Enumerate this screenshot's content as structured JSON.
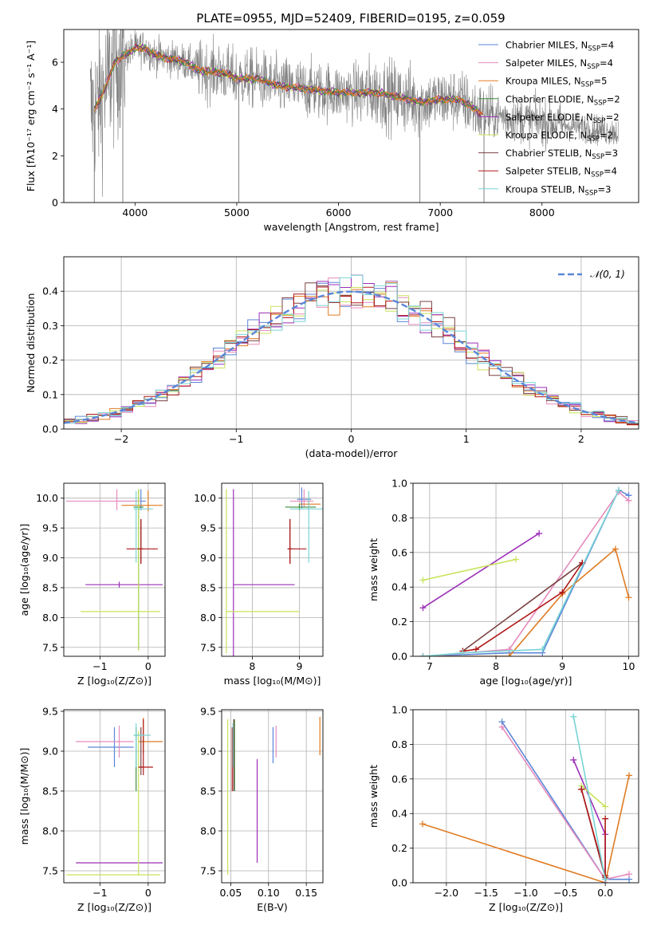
{
  "title": "PLATE=0955, MJD=52409, FIBERID=0195, z=0.059",
  "models": [
    {
      "name": "Chabrier MILES",
      "n": "4",
      "color": "#5b86d8"
    },
    {
      "name": "Salpeter MILES",
      "n": "4",
      "color": "#e58bbd"
    },
    {
      "name": "Kroupa MILES",
      "n": "5",
      "color": "#e07b22"
    },
    {
      "name": "Chabrier ELODIE",
      "n": "2",
      "color": "#3b8f3b"
    },
    {
      "name": "Salpeter ELODIE",
      "n": "2",
      "color": "#9c2fb8"
    },
    {
      "name": "Kroupa ELODIE",
      "n": "2",
      "color": "#c7e35a"
    },
    {
      "name": "Chabrier STELIB",
      "n": "3",
      "color": "#7a4040"
    },
    {
      "name": "Salpeter STELIB",
      "n": "4",
      "color": "#b01818"
    },
    {
      "name": "Kroupa STELIB",
      "n": "3",
      "color": "#7ad4d4"
    }
  ],
  "nssp_prefix": "N",
  "nssp_sub": "SSP",
  "chart_data": [
    {
      "id": "spectrum",
      "type": "line",
      "xlabel": "wavelength [Angstrom, rest frame]",
      "ylabel": "Flux [fλ10⁻¹⁷ erg cm⁻² s⁻¹ A⁻¹]",
      "xlim": [
        3300,
        8950
      ],
      "ylim": [
        0,
        7.4
      ],
      "xticks": [
        4000,
        5000,
        6000,
        7000,
        8000
      ],
      "yticks": [
        0,
        2,
        4,
        6
      ],
      "data_color": "#808080",
      "spikes_down": [
        3600,
        3880,
        5020,
        6800,
        7430
      ],
      "anchor_x": [
        3600,
        3700,
        3800,
        3900,
        4000,
        4100,
        4200,
        4300,
        4400,
        4500,
        4600,
        4700,
        4800,
        4900,
        5000,
        5200,
        5400,
        5600,
        5800,
        6000,
        6200,
        6400,
        6600,
        6800,
        7000,
        7200,
        7400
      ],
      "anchor_y": [
        4.0,
        4.8,
        6.0,
        6.3,
        6.6,
        6.6,
        6.3,
        6.2,
        6.1,
        6.0,
        5.7,
        5.6,
        5.6,
        5.5,
        5.3,
        5.3,
        5.0,
        4.9,
        4.8,
        4.7,
        4.7,
        4.7,
        4.5,
        4.3,
        4.4,
        4.4,
        3.8
      ]
    },
    {
      "id": "residual-hist",
      "type": "line",
      "xlabel": "(data-model)/error",
      "ylabel": "Normed distribution",
      "xlim": [
        -2.5,
        2.5
      ],
      "ylim": [
        0,
        0.5
      ],
      "xticks": [
        -2,
        -1,
        0,
        1,
        2
      ],
      "yticks": [
        0.0,
        0.1,
        0.2,
        0.3,
        0.4
      ],
      "legend": "𝒩(0, 1)",
      "gaussian_color": "#5b86d8"
    },
    {
      "id": "age-vs-Z",
      "type": "scatter",
      "xlabel": "Z [log₁₀(Z/Z⊙)]",
      "ylabel": "age  [log₁₀(age/yr)]",
      "xlim": [
        -1.75,
        0.35
      ],
      "ylim": [
        7.35,
        10.25
      ],
      "xticks": [
        -1,
        0
      ],
      "yticks": [
        7.5,
        8.0,
        8.5,
        9.0,
        9.5,
        10.0
      ],
      "points": [
        {
          "m": 0,
          "x": -0.15,
          "y": 9.95,
          "xerr": [
            0.45,
            0.1
          ],
          "yerr": [
            0.15,
            0.2
          ]
        },
        {
          "m": 1,
          "x": -0.65,
          "y": 9.95,
          "xerr": [
            1.05,
            0.5
          ],
          "yerr": [
            0.15,
            0.2
          ]
        },
        {
          "m": 2,
          "x": 0.0,
          "y": 9.88,
          "xerr": [
            0.55,
            0.3
          ],
          "yerr": [
            0.1,
            0.25
          ]
        },
        {
          "m": 3,
          "x": -0.2,
          "y": 9.85,
          "xerr": [
            0.1,
            0.1
          ],
          "yerr": [
            2.4,
            0.3
          ]
        },
        {
          "m": 4,
          "x": -0.6,
          "y": 8.55,
          "xerr": [
            0.7,
            0.9
          ],
          "yerr": [
            0.05,
            0.05
          ]
        },
        {
          "m": 5,
          "x": -0.2,
          "y": 8.1,
          "xerr": [
            1.2,
            0.45
          ],
          "yerr": [
            0.65,
            2.05
          ]
        },
        {
          "m": 6,
          "x": -0.15,
          "y": 9.15,
          "xerr": [
            0.05,
            0.05
          ],
          "yerr": [
            0.25,
            0.5
          ]
        },
        {
          "m": 7,
          "x": -0.15,
          "y": 9.15,
          "xerr": [
            0.3,
            0.35
          ],
          "yerr": [
            0.25,
            0.5
          ]
        },
        {
          "m": 8,
          "x": -0.25,
          "y": 9.82,
          "xerr": [
            0.05,
            0.35
          ],
          "yerr": [
            0.9,
            0.3
          ]
        }
      ]
    },
    {
      "id": "age-vs-mass",
      "type": "scatter",
      "xlabel": "mass [log₁₀(M/M⊙)]",
      "ylabel": "",
      "xlim": [
        7.35,
        9.5
      ],
      "ylim": [
        7.35,
        10.25
      ],
      "xticks": [
        8,
        9
      ],
      "yticks": [
        7.5,
        8.0,
        8.5,
        9.0,
        9.5,
        10.0
      ],
      "points": [
        {
          "m": 0,
          "x": 9.05,
          "y": 9.98,
          "xerr": [
            0.1,
            0.2
          ],
          "yerr": [
            0.15,
            0.2
          ]
        },
        {
          "m": 1,
          "x": 9.1,
          "y": 9.95,
          "xerr": [
            0.3,
            0.2
          ],
          "yerr": [
            0.1,
            0.2
          ]
        },
        {
          "m": 2,
          "x": 9.2,
          "y": 9.9,
          "xerr": [
            0.2,
            0.25
          ],
          "yerr": [
            0.1,
            0.1
          ]
        },
        {
          "m": 3,
          "x": 9.0,
          "y": 9.85,
          "xerr": [
            0.3,
            0.35
          ],
          "yerr": [
            0.05,
            0.05
          ]
        },
        {
          "m": 4,
          "x": 7.6,
          "y": 8.55,
          "xerr": [
            0.0,
            1.3
          ],
          "yerr": [
            1.2,
            1.6
          ]
        },
        {
          "m": 5,
          "x": 7.45,
          "y": 8.1,
          "xerr": [
            0.0,
            1.55
          ],
          "yerr": [
            0.7,
            2.05
          ]
        },
        {
          "m": 6,
          "x": 8.8,
          "y": 9.15,
          "xerr": [
            0.05,
            0.05
          ],
          "yerr": [
            0.25,
            0.5
          ]
        },
        {
          "m": 7,
          "x": 8.8,
          "y": 9.15,
          "xerr": [
            0.05,
            0.35
          ],
          "yerr": [
            0.25,
            0.5
          ]
        },
        {
          "m": 8,
          "x": 9.2,
          "y": 9.82,
          "xerr": [
            0.4,
            0.35
          ],
          "yerr": [
            0.9,
            0.3
          ]
        }
      ]
    },
    {
      "id": "mass-weight-vs-age",
      "type": "line",
      "xlabel": "age  [log₁₀(age/yr)]",
      "ylabel": "mass weight",
      "xlim": [
        6.75,
        10.15
      ],
      "ylim": [
        0,
        1.0
      ],
      "xticks": [
        7,
        8,
        9,
        10
      ],
      "yticks": [
        0.0,
        0.2,
        0.4,
        0.6,
        0.8,
        1.0
      ],
      "series": [
        {
          "m": 0,
          "x": [
            6.9,
            8.2,
            8.7,
            9.85,
            10.0
          ],
          "y": [
            0.0,
            0.02,
            0.02,
            0.96,
            0.93
          ]
        },
        {
          "m": 1,
          "x": [
            6.9,
            8.2,
            9.85,
            10.0
          ],
          "y": [
            0.0,
            0.04,
            0.95,
            0.9
          ]
        },
        {
          "m": 2,
          "x": [
            6.9,
            8.2,
            9.0,
            9.8,
            10.0
          ],
          "y": [
            0.0,
            0.0,
            0.36,
            0.62,
            0.34
          ]
        },
        {
          "m": 4,
          "x": [
            6.9,
            8.65
          ],
          "y": [
            0.28,
            0.71
          ]
        },
        {
          "m": 5,
          "x": [
            6.9,
            8.3
          ],
          "y": [
            0.44,
            0.56
          ]
        },
        {
          "m": 6,
          "x": [
            7.5,
            9.3
          ],
          "y": [
            0.03,
            0.54
          ]
        },
        {
          "m": 7,
          "x": [
            7.5,
            7.7,
            9.0,
            9.3
          ],
          "y": [
            0.03,
            0.04,
            0.37,
            0.54
          ]
        },
        {
          "m": 8,
          "x": [
            6.9,
            7.5,
            8.7,
            9.85
          ],
          "y": [
            0.0,
            0.02,
            0.04,
            0.96
          ]
        }
      ]
    },
    {
      "id": "mass-vs-Z",
      "type": "scatter",
      "xlabel": "Z [log₁₀(Z/Z⊙)]",
      "ylabel": "mass [log₁₀(M/M⊙)]",
      "xlim": [
        -1.75,
        0.35
      ],
      "ylim": [
        7.35,
        9.52
      ],
      "xticks": [
        -1,
        0
      ],
      "yticks": [
        7.5,
        8.0,
        8.5,
        9.0,
        9.5
      ],
      "points": [
        {
          "m": 0,
          "x": -0.7,
          "y": 9.05,
          "xerr": [
            0.55,
            0.4
          ],
          "yerr": [
            0.25,
            0.25
          ]
        },
        {
          "m": 1,
          "x": -0.6,
          "y": 9.12,
          "xerr": [
            0.9,
            0.3
          ],
          "yerr": [
            0.2,
            0.2
          ]
        },
        {
          "m": 2,
          "x": -0.1,
          "y": 9.12,
          "xerr": [
            0.1,
            0.4
          ],
          "yerr": [
            0.15,
            0.3
          ]
        },
        {
          "m": 3,
          "x": -0.25,
          "y": 9.2,
          "xerr": [
            0.05,
            0.05
          ],
          "yerr": [
            0.7,
            0.1
          ]
        },
        {
          "m": 4,
          "x": -0.2,
          "y": 7.6,
          "xerr": [
            1.3,
            0.5
          ],
          "yerr": [
            0.0,
            0.0
          ]
        },
        {
          "m": 5,
          "x": -0.2,
          "y": 7.45,
          "xerr": [
            1.5,
            0.45
          ],
          "yerr": [
            0.0,
            1.8
          ]
        },
        {
          "m": 6,
          "x": -0.15,
          "y": 8.8,
          "xerr": [
            0.05,
            0.05
          ],
          "yerr": [
            0.1,
            0.5
          ]
        },
        {
          "m": 7,
          "x": -0.1,
          "y": 8.8,
          "xerr": [
            0.1,
            0.2
          ],
          "yerr": [
            0.1,
            0.6
          ]
        },
        {
          "m": 8,
          "x": -0.25,
          "y": 9.2,
          "xerr": [
            0.05,
            0.3
          ],
          "yerr": [
            0.4,
            0.15
          ]
        }
      ]
    },
    {
      "id": "mass-vs-EBV",
      "type": "scatter",
      "xlabel": "E(B-V)",
      "ylabel": "",
      "xlim": [
        0.038,
        0.172
      ],
      "ylim": [
        7.35,
        9.52
      ],
      "xticks": [
        0.05,
        0.1,
        0.15
      ],
      "yticks": [
        7.5,
        8.0,
        8.5,
        9.0,
        9.5
      ],
      "points": [
        {
          "m": 0,
          "x": 0.106,
          "y": 9.05,
          "xerr": [
            0,
            0
          ],
          "yerr": [
            0.2,
            0.25
          ]
        },
        {
          "m": 1,
          "x": 0.11,
          "y": 9.12,
          "xerr": [
            0,
            0
          ],
          "yerr": [
            0.2,
            0.2
          ]
        },
        {
          "m": 2,
          "x": 0.168,
          "y": 9.15,
          "xerr": [
            0,
            0
          ],
          "yerr": [
            0.2,
            0.28
          ]
        },
        {
          "m": 3,
          "x": 0.055,
          "y": 9.0,
          "xerr": [
            0,
            0
          ],
          "yerr": [
            0.5,
            0.4
          ]
        },
        {
          "m": 4,
          "x": 0.085,
          "y": 8.2,
          "xerr": [
            0,
            0
          ],
          "yerr": [
            0.6,
            0.7
          ]
        },
        {
          "m": 5,
          "x": 0.046,
          "y": 8.0,
          "xerr": [
            0,
            0
          ],
          "yerr": [
            0.55,
            1.4
          ]
        },
        {
          "m": 6,
          "x": 0.054,
          "y": 9.0,
          "xerr": [
            0,
            0
          ],
          "yerr": [
            0.5,
            0.4
          ]
        },
        {
          "m": 7,
          "x": 0.052,
          "y": 8.8,
          "xerr": [
            0,
            0
          ],
          "yerr": [
            0.3,
            0.5
          ]
        },
        {
          "m": 8,
          "x": 0.053,
          "y": 9.2,
          "xerr": [
            0,
            0
          ],
          "yerr": [
            0.4,
            0.15
          ]
        }
      ]
    },
    {
      "id": "mass-weight-vs-Z",
      "type": "line",
      "xlabel": "Z [log₁₀(Z/Z⊙)]",
      "ylabel": "mass weight",
      "xlim": [
        -2.42,
        0.42
      ],
      "ylim": [
        0,
        1.0
      ],
      "xticks": [
        -2.0,
        -1.5,
        -1.0,
        -0.5,
        0.0
      ],
      "yticks": [
        0.0,
        0.2,
        0.4,
        0.6,
        0.8,
        1.0
      ],
      "series": [
        {
          "m": 0,
          "x": [
            -1.3,
            0.0,
            0.3
          ],
          "y": [
            0.93,
            0.02,
            0.02
          ]
        },
        {
          "m": 1,
          "x": [
            -1.3,
            0.0,
            0.3
          ],
          "y": [
            0.9,
            0.02,
            0.05
          ]
        },
        {
          "m": 2,
          "x": [
            -2.3,
            0.0,
            0.3
          ],
          "y": [
            0.34,
            0.0,
            0.62
          ]
        },
        {
          "m": 4,
          "x": [
            -0.4,
            0.0,
            0.0
          ],
          "y": [
            0.71,
            0.28,
            0.0
          ]
        },
        {
          "m": 5,
          "x": [
            -0.3,
            0.0
          ],
          "y": [
            0.56,
            0.44
          ]
        },
        {
          "m": 6,
          "x": [
            -0.3,
            0.0
          ],
          "y": [
            0.54,
            0.03
          ]
        },
        {
          "m": 7,
          "x": [
            -0.3,
            0.0,
            0.0
          ],
          "y": [
            0.54,
            0.04,
            0.37
          ]
        },
        {
          "m": 8,
          "x": [
            -0.4,
            0.0
          ],
          "y": [
            0.96,
            0.02
          ]
        }
      ]
    }
  ]
}
